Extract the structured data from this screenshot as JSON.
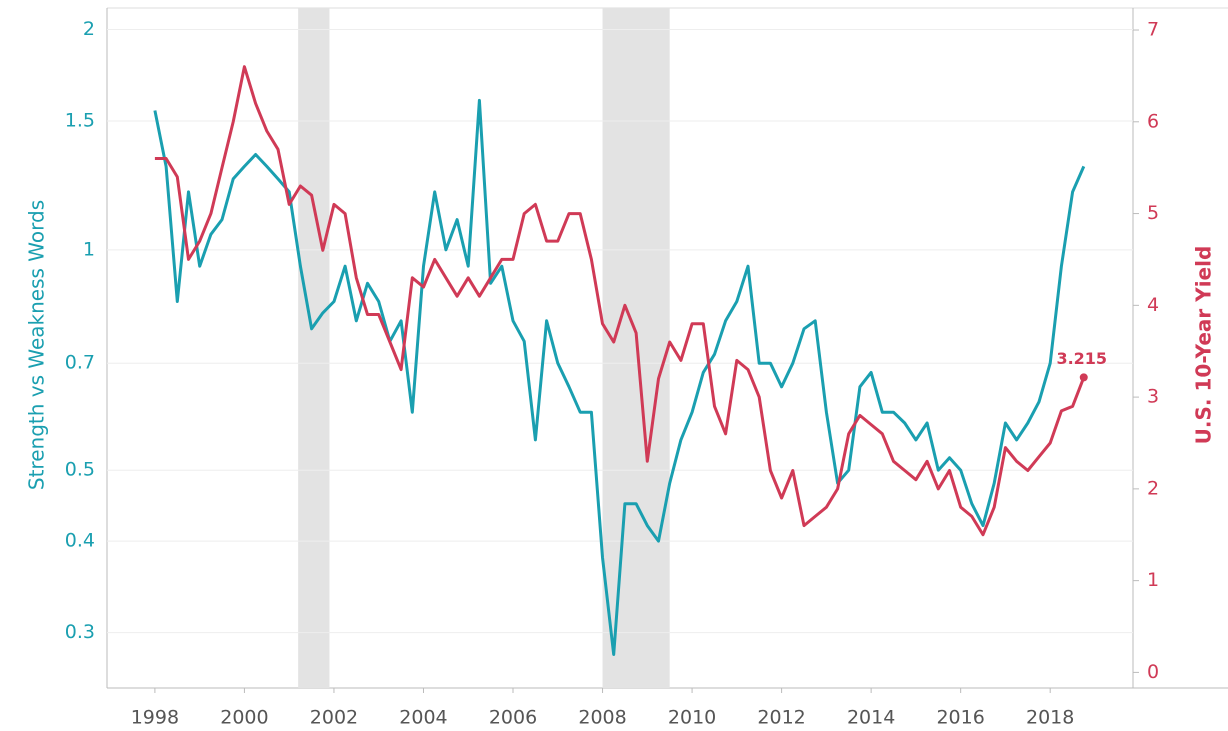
{
  "chart_data": {
    "type": "line",
    "x": [
      1998,
      1998.25,
      1998.5,
      1998.75,
      1999,
      1999.25,
      1999.5,
      1999.75,
      2000,
      2000.25,
      2000.5,
      2000.75,
      2001,
      2001.25,
      2001.5,
      2001.75,
      2002,
      2002.25,
      2002.5,
      2002.75,
      2003,
      2003.25,
      2003.5,
      2003.75,
      2004,
      2004.25,
      2004.5,
      2004.75,
      2005,
      2005.25,
      2005.5,
      2005.75,
      2006,
      2006.25,
      2006.5,
      2006.75,
      2007,
      2007.25,
      2007.5,
      2007.75,
      2008,
      2008.25,
      2008.5,
      2008.75,
      2009,
      2009.25,
      2009.5,
      2009.75,
      2010,
      2010.25,
      2010.5,
      2010.75,
      2011,
      2011.25,
      2011.5,
      2011.75,
      2012,
      2012.25,
      2012.5,
      2012.75,
      2013,
      2013.25,
      2013.5,
      2013.75,
      2014,
      2014.25,
      2014.5,
      2014.75,
      2015,
      2015.25,
      2015.5,
      2015.75,
      2016,
      2016.25,
      2016.5,
      2016.75,
      2017,
      2017.25,
      2017.5,
      2017.75,
      2018,
      2018.25,
      2018.5,
      2018.75
    ],
    "series": [
      {
        "name": "Strength vs Weakness Words",
        "color": "#1a9fb0",
        "axis": "y",
        "values": [
          1.55,
          1.3,
          0.85,
          1.2,
          0.95,
          1.05,
          1.1,
          1.25,
          1.3,
          1.35,
          1.3,
          1.25,
          1.2,
          0.95,
          0.78,
          0.82,
          0.85,
          0.95,
          0.8,
          0.9,
          0.85,
          0.75,
          0.8,
          0.6,
          0.95,
          1.2,
          1.0,
          1.1,
          0.95,
          1.6,
          0.9,
          0.95,
          0.8,
          0.75,
          0.55,
          0.8,
          0.7,
          0.65,
          0.6,
          0.6,
          0.38,
          0.28,
          0.45,
          0.45,
          0.42,
          0.4,
          0.48,
          0.55,
          0.6,
          0.68,
          0.72,
          0.8,
          0.85,
          0.95,
          0.7,
          0.7,
          0.65,
          0.7,
          0.78,
          0.8,
          0.6,
          0.48,
          0.5,
          0.65,
          0.68,
          0.6,
          0.6,
          0.58,
          0.55,
          0.58,
          0.5,
          0.52,
          0.5,
          0.45,
          0.42,
          0.48,
          0.58,
          0.55,
          0.58,
          0.62,
          0.7,
          0.95,
          1.2,
          1.3
        ]
      },
      {
        "name": "U.S. 10-Year Yield",
        "color": "#d03a56",
        "axis": "y2",
        "values": [
          5.6,
          5.6,
          5.4,
          4.5,
          4.7,
          5.0,
          5.5,
          6.0,
          6.6,
          6.2,
          5.9,
          5.7,
          5.1,
          5.3,
          5.2,
          4.6,
          5.1,
          5.0,
          4.3,
          3.9,
          3.9,
          3.6,
          3.3,
          4.3,
          4.2,
          4.5,
          4.3,
          4.1,
          4.3,
          4.1,
          4.3,
          4.5,
          4.5,
          5.0,
          5.1,
          4.7,
          4.7,
          5.0,
          5.0,
          4.5,
          3.8,
          3.6,
          4.0,
          3.7,
          2.3,
          3.2,
          3.6,
          3.4,
          3.8,
          3.8,
          2.9,
          2.6,
          3.4,
          3.3,
          3.0,
          2.2,
          1.9,
          2.2,
          1.6,
          1.7,
          1.8,
          2.0,
          2.6,
          2.8,
          2.7,
          2.6,
          2.3,
          2.2,
          2.1,
          2.3,
          2.0,
          2.2,
          1.8,
          1.7,
          1.5,
          1.8,
          2.45,
          2.3,
          2.2,
          2.35,
          2.5,
          2.85,
          2.9,
          3.215
        ]
      }
    ],
    "annotation": "3.215",
    "shaded_ranges": [
      [
        2001.2,
        2001.9
      ],
      [
        2008.0,
        2009.5
      ]
    ],
    "xlim": [
      1996.93,
      2019.85
    ],
    "xticks": [
      1998,
      2000,
      2002,
      2004,
      2006,
      2008,
      2010,
      2012,
      2014,
      2016,
      2018
    ],
    "ylim": [
      0.252,
      2.14
    ],
    "log_y": true,
    "yticks": [
      0.3,
      0.4,
      0.5,
      0.7,
      1,
      1.5,
      2
    ],
    "y2lim": [
      -0.17,
      7.24
    ],
    "y2ticks": [
      0,
      1,
      2,
      3,
      4,
      5,
      6,
      7
    ],
    "ylabel": "Strength vs Weakness Words",
    "y2label": "U.S. 10-Year Yield",
    "grid": true
  }
}
